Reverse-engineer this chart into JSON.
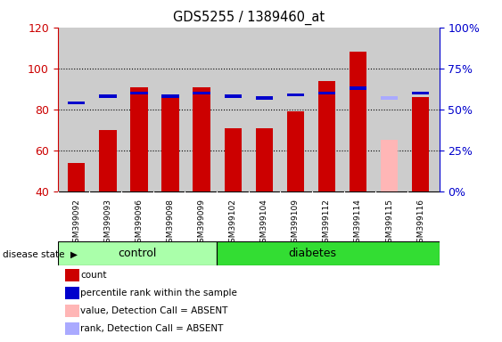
{
  "title": "GDS5255 / 1389460_at",
  "samples": [
    "GSM399092",
    "GSM399093",
    "GSM399096",
    "GSM399098",
    "GSM399099",
    "GSM399102",
    "GSM399104",
    "GSM399109",
    "GSM399112",
    "GSM399114",
    "GSM399115",
    "GSM399116"
  ],
  "groups": [
    "control",
    "control",
    "control",
    "control",
    "control",
    "diabetes",
    "diabetes",
    "diabetes",
    "diabetes",
    "diabetes",
    "diabetes",
    "diabetes"
  ],
  "count_values": [
    54,
    70,
    91,
    87,
    91,
    71,
    71,
    79,
    94,
    108,
    null,
    86
  ],
  "percentile_values": [
    54,
    58,
    60,
    58,
    60,
    58,
    57,
    59,
    60,
    63,
    null,
    60
  ],
  "absent_count": [
    null,
    null,
    null,
    null,
    null,
    null,
    null,
    null,
    null,
    null,
    65,
    null
  ],
  "absent_percentile": [
    null,
    null,
    null,
    null,
    null,
    null,
    null,
    null,
    null,
    null,
    57,
    null
  ],
  "ylim_left": [
    40,
    120
  ],
  "ylim_right": [
    0,
    100
  ],
  "count_color": "#CC0000",
  "percentile_color": "#0000CC",
  "absent_count_color": "#FFB6B6",
  "absent_percentile_color": "#AAAAFF",
  "control_color": "#AAFFAA",
  "diabetes_color": "#33DD33",
  "bg_color": "#CCCCCC",
  "left_tick_color": "#CC0000",
  "right_tick_color": "#0000CC",
  "disease_state_label": "disease state",
  "control_label": "control",
  "diabetes_label": "diabetes",
  "ctrl_count": 5,
  "n_samples": 12
}
